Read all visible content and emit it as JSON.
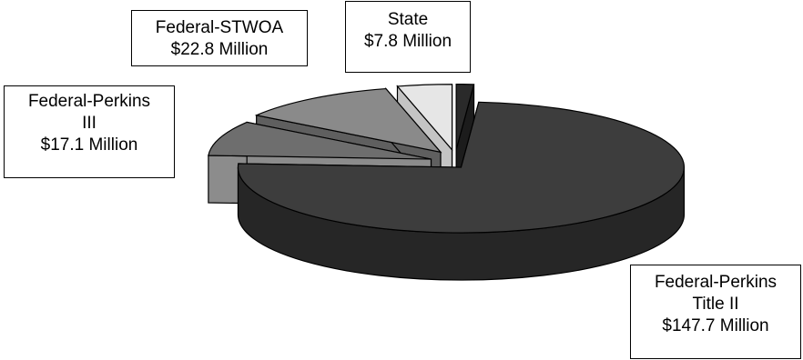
{
  "chart_data": {
    "type": "pie",
    "title": "",
    "style": "3d-exploded",
    "unit": "Million",
    "slices": [
      {
        "key": "perkins2",
        "label_lines": [
          "Federal-Perkins",
          "Title II",
          "$147.7 Million"
        ],
        "value": 147.7,
        "color": "#3d3d3d",
        "side_color": "#262626"
      },
      {
        "key": "perkins3",
        "label_lines": [
          "Federal-Perkins",
          "III",
          "$17.1 Million"
        ],
        "value": 17.1,
        "color": "#6e6e6e",
        "side_color": "#8c8c8c"
      },
      {
        "key": "stwoa",
        "label_lines": [
          "Federal-STWOA",
          "$22.8 Million"
        ],
        "value": 22.8,
        "color": "#8a8a8a",
        "side_color": "#5f5f5f"
      },
      {
        "key": "state",
        "label_lines": [
          "State",
          "$7.8 Million"
        ],
        "value": 7.8,
        "color": "#e6e6e6",
        "side_color": "#c4c4c4"
      }
    ],
    "extra_slice": {
      "key": "small-dark",
      "value": 2.5,
      "color": "#2a2a2a",
      "side_color": "#1c1c1c"
    }
  }
}
